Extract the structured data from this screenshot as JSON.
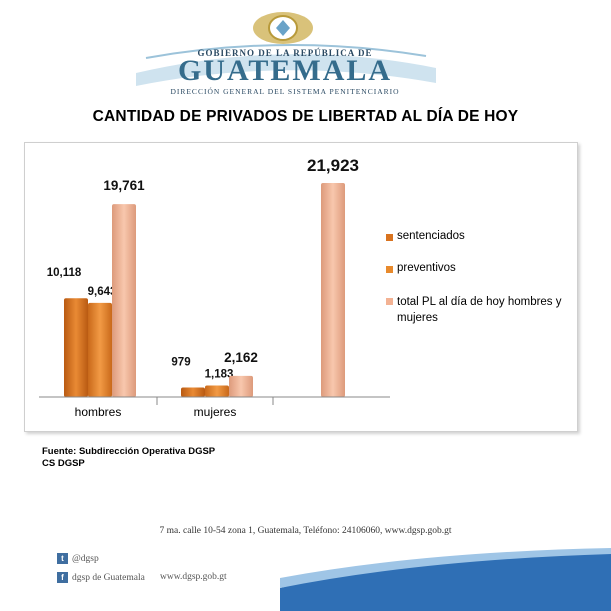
{
  "header": {
    "org_top": "GOBIERNO DE LA REPÚBLICA DE",
    "org_name": "GUATEMALA",
    "org_sub": "DIRECCIÓN GENERAL DEL SISTEMA PENITENCIARIO"
  },
  "title": "CANTIDAD DE PRIVADOS DE LIBERTAD AL DÍA DE HOY",
  "chart_data": {
    "type": "bar",
    "title": "CANTIDAD DE PRIVADOS DE LIBERTAD AL DÍA DE HOY",
    "categories": [
      "hombres",
      "mujeres",
      ""
    ],
    "series": [
      {
        "name": "sentenciados",
        "values": [
          10118,
          979,
          null
        ],
        "labels": [
          "10,118",
          "979",
          ""
        ],
        "color": "#d9731f"
      },
      {
        "name": "preventivos",
        "values": [
          9643,
          1183,
          null
        ],
        "labels": [
          "9,643",
          "1,183",
          ""
        ],
        "color": "#e88a2c"
      },
      {
        "name": "total PL al día de hoy hombres y mujeres",
        "values": [
          19761,
          2162,
          21923
        ],
        "labels": [
          "19,761",
          "2,162",
          "21,923"
        ],
        "color": "#f3b293"
      }
    ],
    "ylim": [
      0,
      21923
    ],
    "grid": false,
    "legend": "right"
  },
  "source_lines": [
    "Fuente: Subdirección Operativa DGSP",
    "CS DGSP"
  ],
  "address": "7 ma. calle 10-54 zona 1, Guatemala, Teléfono: 24106060, www.dgsp.gob.gt",
  "social": {
    "twitter": "@dgsp",
    "facebook": "dgsp de Guatemala",
    "website": "www.dgsp.gob.gt"
  },
  "colors": {
    "brand": "#356c8c",
    "accent": "#2f6fb5"
  }
}
